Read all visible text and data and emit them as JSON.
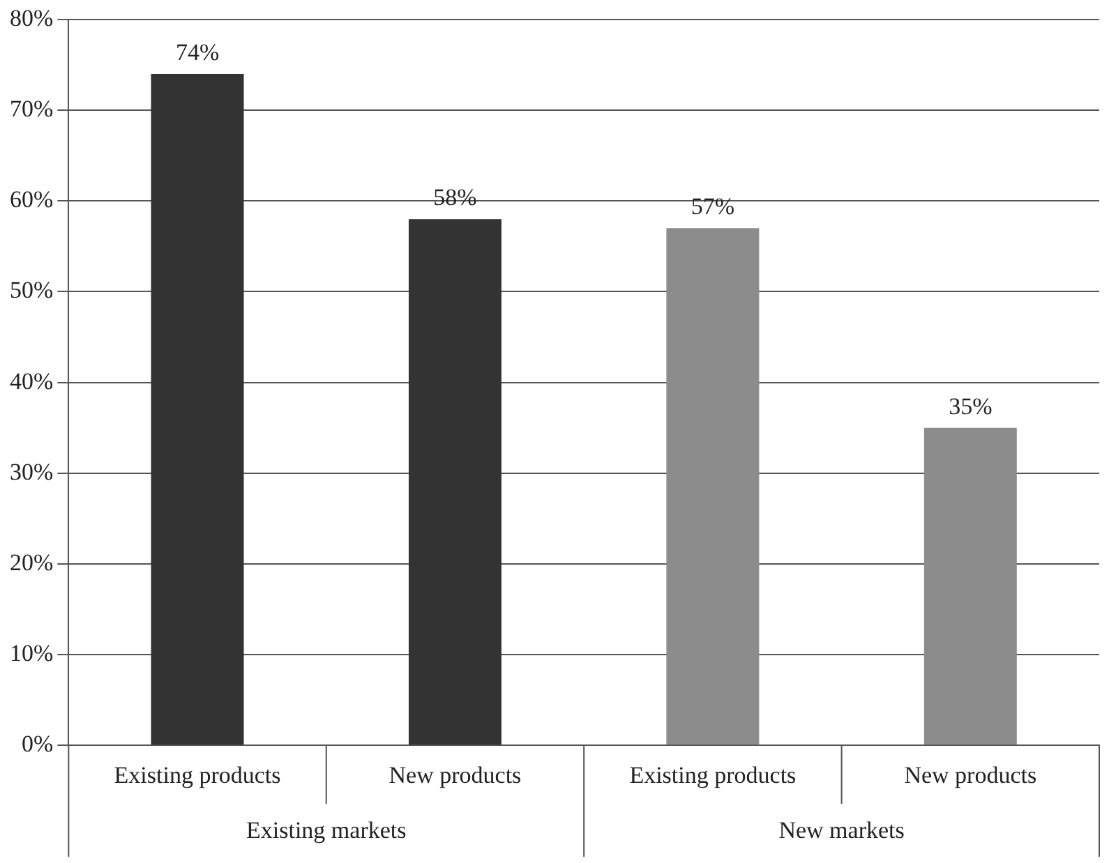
{
  "chart_data": {
    "type": "bar",
    "categories": [
      "Existing products",
      "New products",
      "Existing products",
      "New products"
    ],
    "values": [
      74,
      58,
      57,
      35
    ],
    "colors": [
      "#333333",
      "#333333",
      "#8c8c8c",
      "#8c8c8c"
    ],
    "value_labels": [
      "74%",
      "58%",
      "57%",
      "35%"
    ],
    "annotations": [
      "Existing markets",
      "New markets"
    ],
    "ylim": [
      0,
      80
    ],
    "yticks": [
      {
        "value": 0,
        "label": "0%"
      },
      {
        "value": 10,
        "label": "10%"
      },
      {
        "value": 20,
        "label": "20%"
      },
      {
        "value": 30,
        "label": "30%"
      },
      {
        "value": 40,
        "label": "40%"
      },
      {
        "value": 50,
        "label": "50%"
      },
      {
        "value": 60,
        "label": "60%"
      },
      {
        "value": 70,
        "label": "70%"
      },
      {
        "value": 80,
        "label": "80%"
      }
    ],
    "grid": "y",
    "legend": false
  }
}
